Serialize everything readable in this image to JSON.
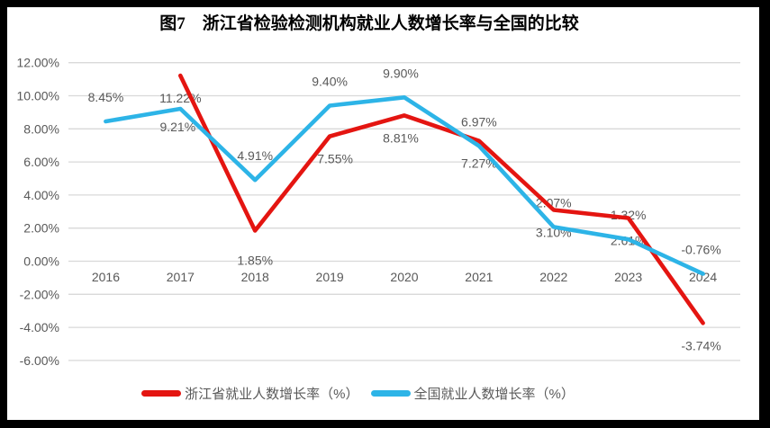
{
  "title": "图7　浙江省检验检测机构就业人数增长率与全国的比较",
  "chart_data": {
    "type": "line",
    "title": "图7　浙江省检验检测机构就业人数增长率与全国的比较",
    "categories": [
      "2016",
      "2017",
      "2018",
      "2019",
      "2020",
      "2021",
      "2022",
      "2023",
      "2024"
    ],
    "series": [
      {
        "name": "浙江省就业人数增长率（%）",
        "color": "#e41511",
        "values": [
          null,
          11.22,
          1.85,
          7.55,
          8.81,
          7.27,
          3.1,
          2.61,
          -3.74
        ],
        "label_dy_default": 25,
        "label_dy_overrides": {
          "2": 33
        },
        "label_dx_overrides": {
          "3": 6,
          "4": -4,
          "8": -2
        }
      },
      {
        "name": "全国就业人数增长率（%）",
        "color": "#2db4e7",
        "values": [
          8.45,
          9.21,
          4.91,
          9.4,
          9.9,
          6.97,
          2.07,
          1.32,
          -0.76
        ],
        "label_dy_default": -27,
        "label_dy_overrides": {
          "1": 20
        },
        "label_dx_overrides": {
          "1": -3,
          "4": -4,
          "8": -2
        }
      }
    ],
    "ylim": [
      -6,
      12
    ],
    "ytick_step": 2,
    "ytick_labels": [
      "-6.00%",
      "-4.00%",
      "-2.00%",
      "0.00%",
      "2.00%",
      "4.00%",
      "6.00%",
      "8.00%",
      "10.00%",
      "12.00%"
    ],
    "xlabel": "",
    "ylabel": "",
    "grid": true,
    "legend_position": "bottom",
    "data_label_format": "0.00%"
  },
  "colors": {
    "grid": "#d9d9d9",
    "axis_text": "#595959",
    "label_text": "#595959",
    "panel": "#ffffff",
    "frame": "#000000"
  }
}
